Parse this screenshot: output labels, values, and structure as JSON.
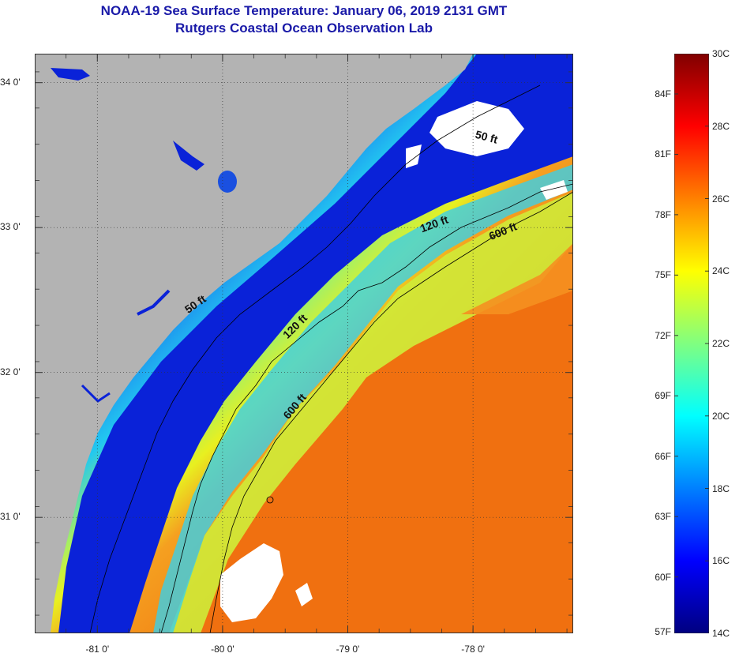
{
  "header": {
    "title_line1": "NOAA-19 Sea Surface Temperature:  January 06, 2019 2131 GMT",
    "title_line2": "Rutgers Coastal Ocean Observation Lab"
  },
  "map": {
    "extent": {
      "lon_min": -81.5,
      "lon_max": -77.2,
      "lat_min": 30.2,
      "lat_max": 34.2
    },
    "colors": {
      "land": "#b3b3b3",
      "cloud": "#ffffff",
      "cold_water": "#0a22d8",
      "mid_water": "#22c8f0",
      "warm_shelf": "#e8f020",
      "gulf_stream": "#f07010",
      "contour": "#000000"
    },
    "lat_ticks": [
      {
        "value": 34,
        "label": "34 0'"
      },
      {
        "value": 33,
        "label": "33 0'"
      },
      {
        "value": 32,
        "label": "32 0'"
      },
      {
        "value": 31,
        "label": "31 0'"
      }
    ],
    "lon_ticks": [
      {
        "value": -81,
        "label": "-81 0'"
      },
      {
        "value": -80,
        "label": "-80 0'"
      },
      {
        "value": -79,
        "label": "-79 0'"
      },
      {
        "value": -78,
        "label": "-78 0'"
      }
    ],
    "contour_labels": [
      {
        "text": "50 ft",
        "lon": -77.9,
        "lat": 33.6,
        "angle": 15
      },
      {
        "text": "50 ft",
        "lon": -80.2,
        "lat": 32.45,
        "angle": -35
      },
      {
        "text": "120 ft",
        "lon": -78.3,
        "lat": 33.0,
        "angle": -20
      },
      {
        "text": "120 ft",
        "lon": -79.4,
        "lat": 32.3,
        "angle": -45
      },
      {
        "text": "600 ft",
        "lon": -77.75,
        "lat": 32.95,
        "angle": -22
      },
      {
        "text": "600 ft",
        "lon": -79.4,
        "lat": 31.75,
        "angle": -50
      }
    ]
  },
  "colorbar": {
    "stops": [
      "#000080",
      "#0000ff",
      "#0080ff",
      "#00ffff",
      "#80ff80",
      "#ffff00",
      "#ff8000",
      "#ff0000",
      "#800000"
    ],
    "fahrenheit": [
      {
        "value": 57,
        "label": "57F"
      },
      {
        "value": 60,
        "label": "60F"
      },
      {
        "value": 63,
        "label": "63F"
      },
      {
        "value": 66,
        "label": "66F"
      },
      {
        "value": 69,
        "label": "69F"
      },
      {
        "value": 72,
        "label": "72F"
      },
      {
        "value": 75,
        "label": "75F"
      },
      {
        "value": 78,
        "label": "78F"
      },
      {
        "value": 81,
        "label": "81F"
      },
      {
        "value": 84,
        "label": "84F"
      }
    ],
    "celsius": [
      {
        "value": 14,
        "label": "14C"
      },
      {
        "value": 16,
        "label": "16C"
      },
      {
        "value": 18,
        "label": "18C"
      },
      {
        "value": 20,
        "label": "20C"
      },
      {
        "value": 22,
        "label": "22C"
      },
      {
        "value": 24,
        "label": "24C"
      },
      {
        "value": 26,
        "label": "26C"
      },
      {
        "value": 28,
        "label": "28C"
      },
      {
        "value": 30,
        "label": "30C"
      }
    ]
  }
}
